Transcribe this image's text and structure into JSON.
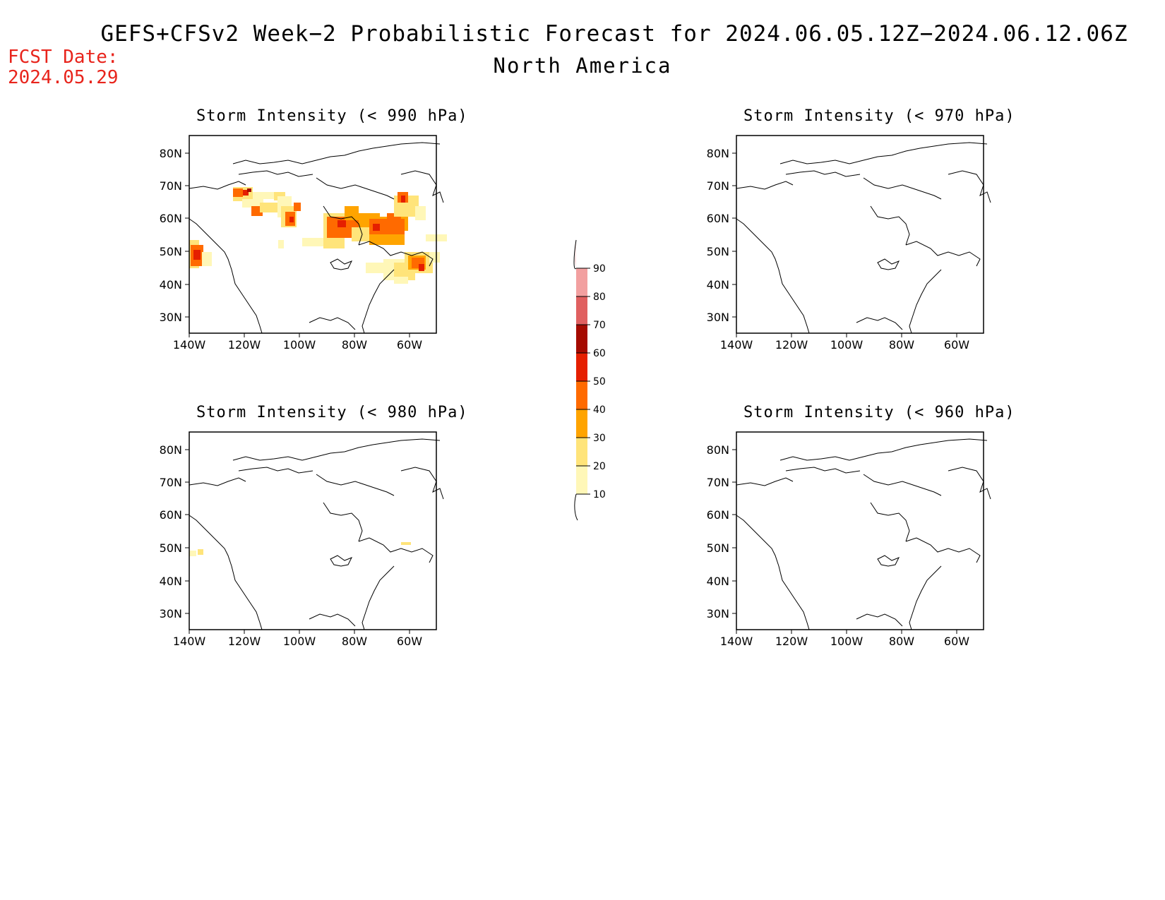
{
  "title": "GEFS+CFSv2 Week−2 Probabilistic Forecast for 2024.06.05.12Z−2024.06.12.06Z",
  "subtitle": "North America",
  "fcst_date_label": "FCST Date:",
  "fcst_date_value": "2024.05.29",
  "colors": {
    "fcst_text": "#e8241c",
    "levels": [
      "#fff7b8",
      "#ffe47a",
      "#ffa400",
      "#ff6a00",
      "#e51f00",
      "#a50a00",
      "#e06060",
      "#f2a0a0",
      "#fde0e0"
    ]
  },
  "colorbar": {
    "ticks": [
      "10",
      "20",
      "30",
      "40",
      "50",
      "60",
      "70",
      "80",
      "90"
    ]
  },
  "map_axes": {
    "lat_labels": [
      "80N",
      "70N",
      "60N",
      "50N",
      "40N",
      "30N"
    ],
    "lon_labels": [
      "140W",
      "120W",
      "100W",
      "80W",
      "60W"
    ]
  },
  "panels": [
    {
      "title": "Storm Intensity (< 990 hPa)"
    },
    {
      "title": "Storm Intensity (< 970 hPa)"
    },
    {
      "title": "Storm Intensity (< 980 hPa)"
    },
    {
      "title": "Storm Intensity (< 960 hPa)"
    }
  ]
}
